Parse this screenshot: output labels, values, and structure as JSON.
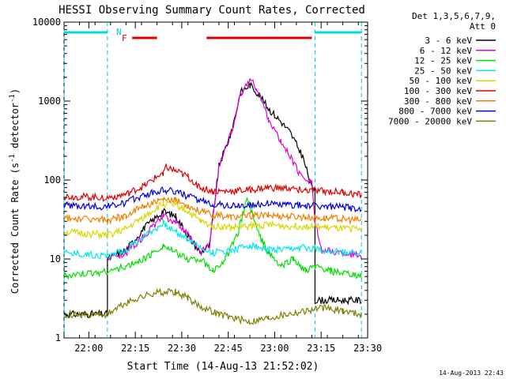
{
  "chart_data": {
    "type": "line",
    "title": "HESSI Observing Summary Count Rates, Corrected",
    "xlabel": "Start Time (14-Aug-13 21:52:02)",
    "ylabel": "Corrected Count Rate (s",
    "ylabel_sup1": "-1",
    "ylabel_mid": " detector",
    "ylabel_sup2": "-1",
    "ylabel_end": ")",
    "yscale": "log",
    "ylim": [
      1,
      10000
    ],
    "y_ticks": [
      {
        "value": 1,
        "label": "1"
      },
      {
        "value": 10,
        "label": "10"
      },
      {
        "value": 100,
        "label": "100"
      },
      {
        "value": 1000,
        "label": "1000"
      },
      {
        "value": 10000,
        "label": "10000"
      }
    ],
    "xlim_minutes_since_2152": [
      0,
      98
    ],
    "x_ticks": [
      {
        "minute": 8,
        "label": "22:00"
      },
      {
        "minute": 23,
        "label": "22:15"
      },
      {
        "minute": 38,
        "label": "22:30"
      },
      {
        "minute": 53,
        "label": "22:45"
      },
      {
        "minute": 68,
        "label": "23:00"
      },
      {
        "minute": 83,
        "label": "23:15"
      },
      {
        "minute": 98,
        "label": "23:30"
      }
    ],
    "legend": {
      "position": "right-outside",
      "header1": "Det 1,3,5,6,7,9,",
      "header2": "Att 0"
    },
    "annotations": {
      "night_label": "N",
      "flare_label": "F",
      "saa_label": "",
      "timestamp": "14-Aug-2013 22:43"
    },
    "night_intervals": [
      [
        0,
        14
      ],
      [
        81,
        96
      ]
    ],
    "flare_intervals": [
      [
        22,
        30
      ],
      [
        46,
        80
      ]
    ],
    "night_boundaries_minutes": [
      0,
      14,
      81,
      96
    ],
    "series": [
      {
        "name": "3 - 6 keV",
        "color": "#000000",
        "points": [
          [
            0,
            2
          ],
          [
            14,
            2
          ],
          [
            14,
            10
          ],
          [
            20,
            13
          ],
          [
            26,
            25
          ],
          [
            32,
            40
          ],
          [
            36,
            35
          ],
          [
            40,
            20
          ],
          [
            44,
            12
          ],
          [
            47,
            15
          ],
          [
            50,
            150
          ],
          [
            54,
            400
          ],
          [
            57,
            1300
          ],
          [
            60,
            1600
          ],
          [
            63,
            1200
          ],
          [
            66,
            800
          ],
          [
            70,
            550
          ],
          [
            73,
            400
          ],
          [
            77,
            200
          ],
          [
            80,
            80
          ],
          [
            81,
            80
          ],
          [
            81,
            3
          ],
          [
            96,
            3
          ]
        ]
      },
      {
        "name": "6 - 12 keV",
        "color": "#e000e0",
        "points": [
          [
            14,
            10
          ],
          [
            20,
            12
          ],
          [
            26,
            20
          ],
          [
            32,
            35
          ],
          [
            36,
            30
          ],
          [
            40,
            20
          ],
          [
            44,
            12
          ],
          [
            47,
            15
          ],
          [
            50,
            150
          ],
          [
            54,
            400
          ],
          [
            57,
            1200
          ],
          [
            60,
            1900
          ],
          [
            62,
            1500
          ],
          [
            66,
            600
          ],
          [
            70,
            300
          ],
          [
            73,
            200
          ],
          [
            76,
            120
          ],
          [
            80,
            95
          ],
          [
            81,
            30
          ],
          [
            83,
            13
          ],
          [
            96,
            11
          ]
        ]
      },
      {
        "name": "12 - 25 keV",
        "color": "#00e000",
        "points": [
          [
            0,
            6
          ],
          [
            14,
            7
          ],
          [
            20,
            8
          ],
          [
            26,
            10
          ],
          [
            32,
            15
          ],
          [
            36,
            12
          ],
          [
            40,
            10
          ],
          [
            44,
            10
          ],
          [
            48,
            7
          ],
          [
            52,
            10
          ],
          [
            56,
            20
          ],
          [
            59,
            60
          ],
          [
            61,
            35
          ],
          [
            63,
            20
          ],
          [
            66,
            12
          ],
          [
            70,
            8
          ],
          [
            74,
            10
          ],
          [
            78,
            7
          ],
          [
            81,
            8
          ],
          [
            86,
            7
          ],
          [
            96,
            6
          ]
        ]
      },
      {
        "name": "25 - 50 keV",
        "color": "#00e8e8",
        "points": [
          [
            0,
            12
          ],
          [
            14,
            11
          ],
          [
            20,
            13
          ],
          [
            26,
            20
          ],
          [
            32,
            28
          ],
          [
            36,
            22
          ],
          [
            40,
            18
          ],
          [
            44,
            14
          ],
          [
            48,
            12
          ],
          [
            54,
            13
          ],
          [
            60,
            15
          ],
          [
            66,
            13
          ],
          [
            72,
            13
          ],
          [
            78,
            14
          ],
          [
            84,
            13
          ],
          [
            90,
            12
          ],
          [
            96,
            12
          ]
        ]
      },
      {
        "name": "50 - 100 keV",
        "color": "#d8d800",
        "points": [
          [
            0,
            22
          ],
          [
            14,
            20
          ],
          [
            20,
            24
          ],
          [
            26,
            35
          ],
          [
            32,
            50
          ],
          [
            36,
            48
          ],
          [
            40,
            40
          ],
          [
            44,
            30
          ],
          [
            48,
            26
          ],
          [
            54,
            25
          ],
          [
            60,
            26
          ],
          [
            66,
            27
          ],
          [
            72,
            26
          ],
          [
            78,
            26
          ],
          [
            84,
            25
          ],
          [
            90,
            24
          ],
          [
            96,
            24
          ]
        ]
      },
      {
        "name": "100 - 300 keV",
        "color": "#e00000",
        "points": [
          [
            0,
            62
          ],
          [
            14,
            60
          ],
          [
            20,
            66
          ],
          [
            26,
            85
          ],
          [
            32,
            125
          ],
          [
            33,
            145
          ],
          [
            36,
            130
          ],
          [
            40,
            110
          ],
          [
            44,
            80
          ],
          [
            48,
            72
          ],
          [
            54,
            72
          ],
          [
            60,
            75
          ],
          [
            66,
            80
          ],
          [
            72,
            78
          ],
          [
            78,
            74
          ],
          [
            84,
            72
          ],
          [
            90,
            70
          ],
          [
            96,
            64
          ]
        ]
      },
      {
        "name": "300 - 800 keV",
        "color": "#f08000",
        "points": [
          [
            0,
            33
          ],
          [
            14,
            31
          ],
          [
            20,
            35
          ],
          [
            26,
            48
          ],
          [
            32,
            55
          ],
          [
            36,
            55
          ],
          [
            40,
            48
          ],
          [
            44,
            40
          ],
          [
            48,
            36
          ],
          [
            54,
            34
          ],
          [
            60,
            35
          ],
          [
            66,
            36
          ],
          [
            72,
            35
          ],
          [
            78,
            34
          ],
          [
            84,
            33
          ],
          [
            90,
            32
          ],
          [
            96,
            31
          ]
        ]
      },
      {
        "name": "800 - 7000 keV",
        "color": "#0000e0",
        "points": [
          [
            0,
            48
          ],
          [
            14,
            46
          ],
          [
            20,
            52
          ],
          [
            26,
            65
          ],
          [
            32,
            75
          ],
          [
            36,
            72
          ],
          [
            40,
            62
          ],
          [
            44,
            55
          ],
          [
            48,
            50
          ],
          [
            54,
            47
          ],
          [
            60,
            48
          ],
          [
            66,
            50
          ],
          [
            72,
            49
          ],
          [
            78,
            48
          ],
          [
            84,
            46
          ],
          [
            90,
            45
          ],
          [
            96,
            43
          ]
        ]
      },
      {
        "name": "7000 - 20000 keV",
        "color": "#808000",
        "points": [
          [
            0,
            2
          ],
          [
            14,
            2
          ],
          [
            18,
            2.5
          ],
          [
            24,
            3.2
          ],
          [
            30,
            3.8
          ],
          [
            36,
            3.8
          ],
          [
            40,
            3.2
          ],
          [
            44,
            2.5
          ],
          [
            50,
            2
          ],
          [
            60,
            1.6
          ],
          [
            66,
            1.8
          ],
          [
            72,
            2
          ],
          [
            78,
            2.2
          ],
          [
            84,
            2.4
          ],
          [
            90,
            2.2
          ],
          [
            96,
            2
          ]
        ]
      }
    ]
  }
}
